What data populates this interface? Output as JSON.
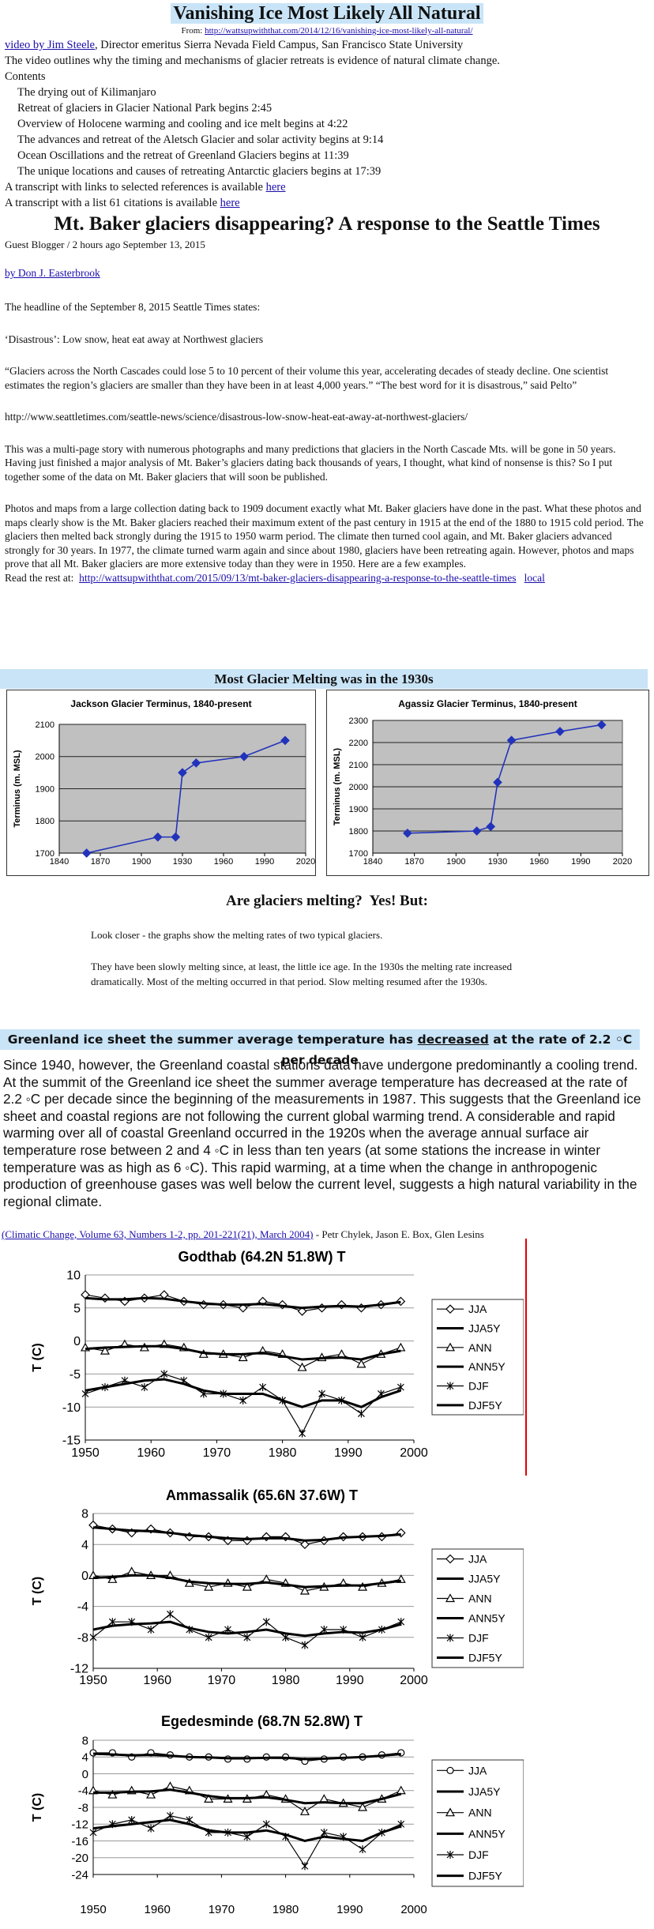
{
  "header": {
    "title": "Vanishing Ice Most Likely All Natural",
    "from_label": "From:",
    "from_url": "http://wattsupwiththat.com/2014/12/16/vanishing-ice-most-likely-all-natural/",
    "video_link": "video by Jim Steele",
    "video_rest": ", Director emeritus Sierra Nevada Field Campus, San Francisco State University",
    "outline": "The video outlines why the timing and mechanisms of glacier retreats is evidence of natural climate change.",
    "contents_label": "Contents",
    "contents": [
      "The drying out of Kilimanjaro",
      "Retreat of glaciers in Glacier National Park begins 2:45",
      "Overview of Holocene warming and cooling and ice melt begins at 4:22",
      "The advances and retreat of the Aletsch Glacier and solar activity begins at 9:14",
      "Ocean Oscillations and the retreat of Greenland Glaciers begins at 11:39",
      "The unique locations and causes of retreating Antarctic glaciers begins at 17:39"
    ],
    "transcript1": "A transcript with links to selected references is available",
    "here1": "here",
    "transcript2": "A transcript with a list 61 citations is available",
    "here2": "here"
  },
  "article": {
    "title": "Mt. Baker glaciers disappearing? A response to the Seattle Times",
    "byline": "Guest Blogger / 2 hours ago September 13, 2015",
    "author": "by Don J. Easterbrook",
    "paragraphs": [
      "The headline of the September 8, 2015 Seattle Times states:",
      "‘Disastrous’: Low snow, heat eat away at Northwest glaciers",
      "“Glaciers across the North Cascades could lose 5 to 10 percent of their volume this year, accelerating decades of steady decline. One scientist estimates the region’s glaciers are smaller than they have been in at least 4,000 years.” “The best word for it is disastrous,” said Pelto”",
      "http://www.seattletimes.com/seattle-news/science/disastrous-low-snow-heat-eat-away-at-northwest-glaciers/",
      "This was a multi-page story with numerous photographs and many predictions that glaciers in the North Cascade Mts. will be gone in 50 years. Having just finished a major analysis of Mt. Baker’s glaciers dating back thousands of years, I thought, what kind of nonsense is this? So I put together some of the data on Mt. Baker glaciers that will soon be published.",
      "Photos and maps from a large collection dating back to 1909 document exactly what Mt. Baker glaciers have done in the past. What these photos and maps clearly show is the Mt. Baker glaciers reached their maximum extent of the past century in 1915 at the end of the 1880 to 1915 cold period. The glaciers then melted back strongly during the 1915 to 1950 warm period. The climate then turned cool again, and Mt. Baker glaciers advanced strongly for 30 years. In 1977, the climate turned warm again and since about 1980, glaciers have been retreating again. However, photos and maps prove that all Mt. Baker glaciers are more extensive today than they were in 1950. Here are a few examples."
    ],
    "read_label": "Read the rest at:",
    "read_url": "http://wattsupwiththat.com/2015/09/13/mt-baker-glaciers-disappearing-a-response-to-the-seattle-times",
    "local": "local"
  },
  "section1": {
    "banner": "Most Glacier Melting was in the 1930s",
    "heading": "Are glaciers melting?  Yes! But:",
    "notes": [
      "Look closer - the graphs show the melting rates of two typical glaciers.",
      "They have been slowly melting since, at least, the little ice age. In the 1930s the melting rate increased dramatically. Most of the melting occurred in that period.  Slow melting resumed after the 1930s."
    ]
  },
  "section2": {
    "banner_a": "Greenland ice sheet the summer average temperature has",
    "banner_b": "decreased",
    "banner_c": "at the rate of 2.2 ◦C per decade",
    "paragraph": "Since 1940, however, the Greenland coastal stations data have undergone predominantly a cooling trend. At the summit of the Greenland ice sheet the summer average temperature has decreased at the rate of 2.2 ◦C per decade since the beginning of the measurements in 1987. This suggests that the Greenland ice sheet and coastal regions are not following the current global warming trend. A considerable and rapid warming over all of coastal Greenland occurred in the 1920s when the average annual surface air temperature rose between 2 and 4 ◦C in less than ten years (at some stations the increase in winter temperature was as high as 6 ◦C). This rapid warming, at a time when the change in anthropogenic production of greenhouse gases was well below the current level, suggests a high natural variability in the regional climate.",
    "citation": "(Climatic Change, Volume 63, Numbers 1-2, pp. 201-221(21), March 2004)",
    "authors": " - Petr Chylek, Jason E. Box, Glen Lesins"
  },
  "chart_data": [
    {
      "type": "line",
      "title": "Jackson Glacier Terminus, 1840-present",
      "ylabel": "Terminus (m. MSL)",
      "x": [
        1860,
        1912,
        1925,
        1930,
        1940,
        1975,
        2005
      ],
      "values": [
        1700,
        1750,
        1750,
        1950,
        1980,
        2000,
        2050
      ],
      "color": "#2233bb",
      "marker": "diamond",
      "plot_background": "#c0c0c0",
      "grid": true,
      "xlim": [
        1840,
        2020
      ],
      "xticks": [
        1840,
        1870,
        1900,
        1930,
        1960,
        1990,
        2020
      ],
      "ylim": [
        1700,
        2100
      ],
      "yticks": [
        1700,
        1800,
        1900,
        2000,
        2100
      ]
    },
    {
      "type": "line",
      "title": "Agassiz Glacier Terminus, 1840-present",
      "ylabel": "Terminus (m. MSL)",
      "x": [
        1865,
        1915,
        1925,
        1930,
        1940,
        1975,
        2005
      ],
      "values": [
        1790,
        1800,
        1820,
        2020,
        2210,
        2250,
        2280
      ],
      "color": "#2233bb",
      "marker": "diamond",
      "plot_background": "#c0c0c0",
      "grid": true,
      "xlim": [
        1840,
        2020
      ],
      "xticks": [
        1840,
        1870,
        1900,
        1930,
        1960,
        1990,
        2020
      ],
      "ylim": [
        1700,
        2300
      ],
      "yticks": [
        1700,
        1800,
        1900,
        2000,
        2100,
        2200,
        2300
      ]
    },
    {
      "type": "line",
      "title": "Godthab (64.2N 51.8W) T",
      "ylabel": "T (C)",
      "legend": "right",
      "grid": true,
      "x": [
        1950,
        1953,
        1956,
        1959,
        1962,
        1965,
        1968,
        1971,
        1974,
        1977,
        1980,
        1983,
        1986,
        1989,
        1992,
        1995,
        1998
      ],
      "xlim": [
        1950,
        2000
      ],
      "xticks": [
        1950,
        1960,
        1970,
        1980,
        1990,
        2000
      ],
      "ylim": [
        -15,
        10
      ],
      "yticks": [
        -15,
        -10,
        -5,
        0,
        5,
        10
      ],
      "series": [
        {
          "name": "JJA",
          "color": "#000000",
          "marker": "diamond",
          "line_width": 1.2,
          "values": [
            7,
            6.5,
            6,
            6.5,
            7,
            6,
            5.5,
            5.5,
            5,
            6,
            5.5,
            4.5,
            5,
            5.5,
            5,
            5.5,
            6
          ]
        },
        {
          "name": "JJA5Y",
          "color": "#000000",
          "line_width": 3,
          "values": [
            6.5,
            6.3,
            6.3,
            6.5,
            6.4,
            6,
            5.7,
            5.5,
            5.5,
            5.6,
            5.3,
            5,
            5.2,
            5.3,
            5.2,
            5.5,
            5.9
          ]
        },
        {
          "name": "ANN",
          "color": "#000000",
          "marker": "triangle",
          "line_width": 1.2,
          "values": [
            -1,
            -1.5,
            -0.5,
            -1,
            -0.5,
            -1,
            -2,
            -2,
            -2.5,
            -1.5,
            -2,
            -4,
            -2.5,
            -2,
            -3.5,
            -2,
            -1
          ]
        },
        {
          "name": "ANN5Y",
          "color": "#000000",
          "line_width": 3,
          "values": [
            -1.2,
            -1,
            -0.9,
            -0.8,
            -0.8,
            -1.2,
            -1.8,
            -2,
            -2,
            -1.8,
            -2.3,
            -2.8,
            -2.6,
            -2.5,
            -2.8,
            -2,
            -1.5
          ]
        },
        {
          "name": "DJF",
          "color": "#000000",
          "marker": "asterisk",
          "line_width": 1.2,
          "values": [
            -8,
            -7,
            -6,
            -7,
            -5,
            -6,
            -8,
            -8,
            -9,
            -7,
            -9,
            -14,
            -8,
            -9,
            -11,
            -8,
            -7
          ]
        },
        {
          "name": "DJF5Y",
          "color": "#000000",
          "line_width": 3,
          "values": [
            -7.5,
            -7,
            -6.5,
            -6,
            -5.8,
            -6.5,
            -7.5,
            -8,
            -8,
            -8,
            -9,
            -10,
            -9,
            -9,
            -10,
            -8.5,
            -7.5
          ]
        }
      ]
    },
    {
      "type": "line",
      "title": "Ammassalik (65.6N 37.6W) T",
      "ylabel": "T (C)",
      "legend": "right",
      "grid": true,
      "x": [
        1950,
        1953,
        1956,
        1959,
        1962,
        1965,
        1968,
        1971,
        1974,
        1977,
        1980,
        1983,
        1986,
        1989,
        1992,
        1995,
        1998
      ],
      "xlim": [
        1950,
        2000
      ],
      "xticks": [
        1950,
        1960,
        1970,
        1980,
        1990,
        2000
      ],
      "ylim": [
        -12,
        8
      ],
      "yticks": [
        -12,
        -8,
        -4,
        0,
        4,
        8
      ],
      "series": [
        {
          "name": "JJA",
          "color": "#000000",
          "marker": "diamond",
          "line_width": 1.2,
          "values": [
            6.5,
            6,
            5.5,
            6,
            5.5,
            5,
            5,
            4.5,
            4.5,
            5,
            5,
            4,
            4.5,
            5,
            5,
            5,
            5.5
          ]
        },
        {
          "name": "JJA5Y",
          "color": "#000000",
          "line_width": 3,
          "values": [
            6.2,
            6,
            5.8,
            5.7,
            5.5,
            5.2,
            5,
            4.8,
            4.7,
            4.8,
            4.8,
            4.5,
            4.6,
            4.9,
            5,
            5.1,
            5.3
          ]
        },
        {
          "name": "ANN",
          "color": "#000000",
          "marker": "triangle",
          "line_width": 1.2,
          "values": [
            0,
            -0.5,
            0.5,
            0,
            0,
            -1,
            -1.5,
            -1,
            -1.5,
            -0.5,
            -1,
            -2,
            -1.5,
            -1,
            -1.5,
            -1,
            -0.5
          ]
        },
        {
          "name": "ANN5Y",
          "color": "#000000",
          "line_width": 3,
          "values": [
            -0.3,
            -0.2,
            0,
            0,
            -0.3,
            -0.8,
            -1,
            -1.1,
            -1.1,
            -0.9,
            -1.2,
            -1.5,
            -1.4,
            -1.3,
            -1.3,
            -1,
            -0.7
          ]
        },
        {
          "name": "DJF",
          "color": "#000000",
          "marker": "asterisk",
          "line_width": 1.2,
          "values": [
            -8,
            -6,
            -6,
            -7,
            -5,
            -7,
            -8,
            -7,
            -8,
            -6,
            -8,
            -9,
            -7,
            -7,
            -8,
            -7,
            -6
          ]
        },
        {
          "name": "DJF5Y",
          "color": "#000000",
          "line_width": 3,
          "values": [
            -7,
            -6.5,
            -6.3,
            -6.2,
            -6,
            -6.8,
            -7.3,
            -7.5,
            -7.3,
            -7,
            -7.5,
            -7.8,
            -7.5,
            -7.3,
            -7.4,
            -7,
            -6.3
          ]
        }
      ]
    },
    {
      "type": "line",
      "title": "Egedesminde (68.7N 52.8W) T",
      "ylabel": "T (C)",
      "legend": "right",
      "grid": true,
      "x": [
        1950,
        1953,
        1956,
        1959,
        1962,
        1965,
        1968,
        1971,
        1974,
        1977,
        1980,
        1983,
        1986,
        1989,
        1992,
        1995,
        1998
      ],
      "xlim": [
        1950,
        2000
      ],
      "xticks": [
        1950,
        1960,
        1970,
        1980,
        1990,
        2000
      ],
      "ylim": [
        -24,
        8
      ],
      "yticks": [
        -24,
        -20,
        -16,
        -12,
        -8,
        -4,
        0,
        4,
        8
      ],
      "series": [
        {
          "name": "JJA",
          "color": "#000000",
          "marker": "circle",
          "line_width": 1.2,
          "values": [
            5,
            5,
            4,
            5,
            4.5,
            4,
            4,
            3.5,
            3.5,
            4,
            4,
            3,
            3.5,
            4,
            4,
            4.5,
            5
          ]
        },
        {
          "name": "JJA5Y",
          "color": "#000000",
          "line_width": 3,
          "values": [
            4.8,
            4.6,
            4.4,
            4.5,
            4.3,
            4,
            3.9,
            3.7,
            3.7,
            3.8,
            3.8,
            3.5,
            3.6,
            3.8,
            4,
            4.3,
            4.7
          ]
        },
        {
          "name": "ANN",
          "color": "#000000",
          "marker": "triangle",
          "line_width": 1.2,
          "values": [
            -4,
            -5,
            -4,
            -5,
            -3,
            -4,
            -6,
            -6,
            -6,
            -5,
            -6,
            -9,
            -6,
            -7,
            -8,
            -6,
            -4
          ]
        },
        {
          "name": "ANN5Y",
          "color": "#000000",
          "line_width": 3,
          "values": [
            -4.5,
            -4.5,
            -4.3,
            -4.2,
            -3.8,
            -4.5,
            -5.3,
            -5.8,
            -5.8,
            -5.6,
            -6.2,
            -7,
            -6.8,
            -7,
            -7,
            -6,
            -4.8
          ]
        },
        {
          "name": "DJF",
          "color": "#000000",
          "marker": "asterisk",
          "line_width": 1.2,
          "values": [
            -14,
            -12,
            -11,
            -13,
            -10,
            -11,
            -14,
            -14,
            -15,
            -12,
            -15,
            -22,
            -14,
            -15,
            -18,
            -14,
            -12
          ]
        },
        {
          "name": "DJF5Y",
          "color": "#000000",
          "line_width": 3,
          "values": [
            -13,
            -12.5,
            -12,
            -11.5,
            -11,
            -12,
            -13.5,
            -14,
            -14,
            -13.5,
            -14.5,
            -16,
            -15,
            -15.5,
            -16,
            -14,
            -12.5
          ]
        }
      ]
    }
  ]
}
